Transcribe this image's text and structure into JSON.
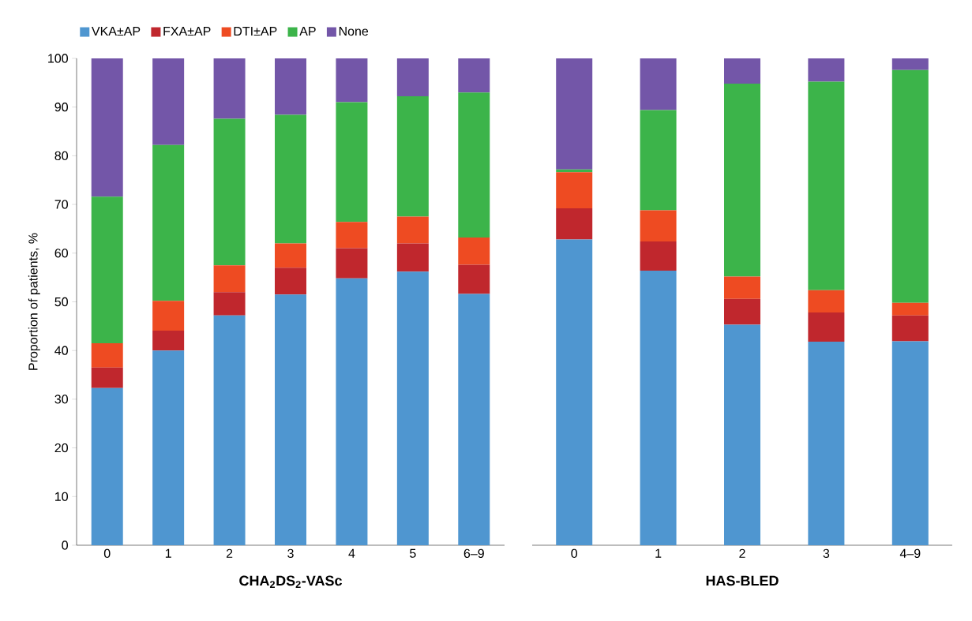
{
  "chart_data": [
    {
      "type": "bar",
      "stacked": true,
      "xlabel": "CHA$_{2}$DS$_{2}$-VASc",
      "ylabel": "Proportion of patients, %",
      "categories": [
        "0",
        "1",
        "2",
        "3",
        "4",
        "5",
        "6–9"
      ],
      "ylim": [
        0,
        100
      ],
      "yticks": [
        0,
        10,
        20,
        30,
        40,
        50,
        60,
        70,
        80,
        90,
        100
      ],
      "legend": "top",
      "series": [
        {
          "name": "VKA±AP",
          "color": "#4f96d0",
          "values": [
            32.3,
            40.0,
            47.2,
            51.5,
            54.8,
            56.2,
            51.6
          ]
        },
        {
          "name": "FXA±AP",
          "color": "#c0272d",
          "values": [
            4.2,
            4.1,
            4.8,
            5.5,
            6.2,
            5.8,
            6.0
          ]
        },
        {
          "name": "DTI±AP",
          "color": "#ee4b22",
          "values": [
            5.0,
            6.1,
            5.5,
            5.0,
            5.4,
            5.5,
            5.6
          ]
        },
        {
          "name": "AP",
          "color": "#3cb44a",
          "values": [
            30.1,
            32.0,
            30.1,
            26.4,
            24.6,
            24.7,
            29.8
          ]
        },
        {
          "name": "None",
          "color": "#7356a8",
          "values": [
            28.4,
            17.8,
            12.4,
            11.6,
            9.0,
            7.8,
            7.0
          ]
        }
      ]
    },
    {
      "type": "bar",
      "stacked": true,
      "xlabel": "HAS-BLED",
      "categories": [
        "0",
        "1",
        "2",
        "3",
        "4–9"
      ],
      "ylim": [
        0,
        100
      ],
      "yticks": [
        0,
        10,
        20,
        30,
        40,
        50,
        60,
        70,
        80,
        90,
        100
      ],
      "tick_labels": "x",
      "series": [
        {
          "color": "#4f96d0",
          "values": [
            62.8,
            56.4,
            45.3,
            41.8,
            41.9
          ]
        },
        {
          "color": "#c0272d",
          "values": [
            6.4,
            6.0,
            5.3,
            6.0,
            5.3
          ]
        },
        {
          "color": "#ee4b22",
          "values": [
            7.4,
            6.4,
            4.6,
            4.6,
            2.6
          ]
        },
        {
          "color": "#3cb44a",
          "values": [
            0.6,
            20.6,
            39.6,
            42.8,
            47.8
          ]
        },
        {
          "color": "#7356a8",
          "values": [
            22.8,
            10.6,
            5.2,
            4.8,
            2.4
          ]
        }
      ]
    }
  ]
}
